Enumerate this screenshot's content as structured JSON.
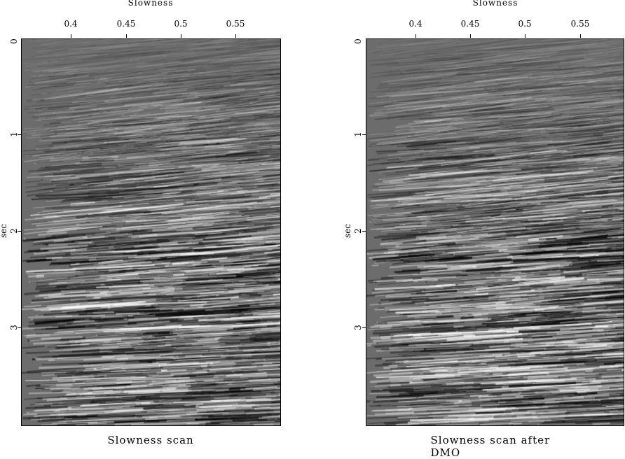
{
  "panels": [
    {
      "caption": "Slowness scan",
      "xlabel": "Slowness",
      "ylabel": "sec",
      "xticks": [
        "0.4",
        "0.45",
        "0.5",
        "0.55"
      ],
      "yticks": [
        "0",
        "1",
        "2",
        "3"
      ]
    },
    {
      "caption": "Slowness scan after DMO",
      "xlabel": "Slowness",
      "ylabel": "sec",
      "xticks": [
        "0.4",
        "0.45",
        "0.5",
        "0.55"
      ],
      "yticks": [
        "0",
        "1",
        "2",
        "3"
      ]
    }
  ],
  "colors": {
    "background_gray": "#6c6c6c"
  }
}
